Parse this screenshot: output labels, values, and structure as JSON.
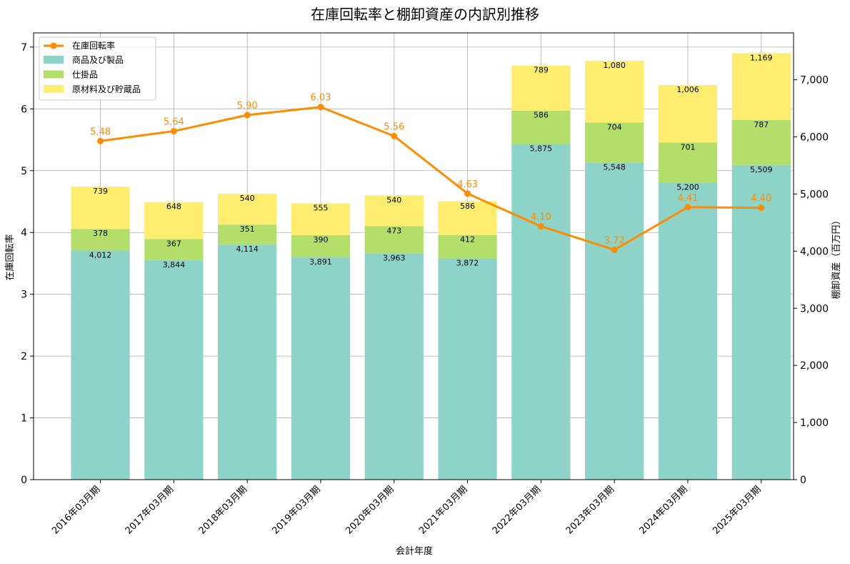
{
  "chart_data": {
    "type": "bar",
    "title": "在庫回転率と棚卸資産の内訳別推移",
    "xlabel": "会計年度",
    "ylabel_left": "在庫回転率",
    "ylabel_right": "棚卸資産（百万円）",
    "categories": [
      "2016年03月期",
      "2017年03月期",
      "2018年03月期",
      "2019年03月期",
      "2020年03月期",
      "2021年03月期",
      "2022年03月期",
      "2023年03月期",
      "2024年03月期",
      "2025年03月期"
    ],
    "stack_series": [
      {
        "name": "商品及び製品",
        "color": "#8dd3c7",
        "values": [
          4012,
          3844,
          4114,
          3891,
          3963,
          3872,
          5875,
          5548,
          5200,
          5509
        ],
        "labels": [
          "4,012",
          "3,844",
          "4,114",
          "3,891",
          "3,963",
          "3,872",
          "5,875",
          "5,548",
          "5,200",
          "5,509"
        ]
      },
      {
        "name": "仕掛品",
        "color": "#b3de69",
        "values": [
          378,
          367,
          351,
          390,
          473,
          412,
          586,
          704,
          701,
          787
        ],
        "labels": [
          "378",
          "367",
          "351",
          "390",
          "473",
          "412",
          "586",
          "704",
          "701",
          "787"
        ]
      },
      {
        "name": "原材料及び貯蔵品",
        "color": "#ffed6f",
        "values": [
          739,
          648,
          540,
          555,
          540,
          586,
          789,
          1080,
          1006,
          1169
        ],
        "labels": [
          "739",
          "648",
          "540",
          "555",
          "540",
          "586",
          "789",
          "1,080",
          "1,006",
          "1,169"
        ]
      }
    ],
    "line_series": {
      "name": "在庫回転率",
      "color": "#ff8c00",
      "values": [
        5.48,
        5.64,
        5.9,
        6.03,
        5.56,
        4.63,
        4.1,
        3.72,
        4.41,
        4.4
      ],
      "labels": [
        "5.48",
        "5.64",
        "5.90",
        "6.03",
        "5.56",
        "4.63",
        "4.10",
        "3.72",
        "4.41",
        "4.40"
      ]
    },
    "ylim_left": [
      0,
      7.23
    ],
    "ylim_right": [
      0,
      7821
    ],
    "yticks_left": [
      "0",
      "1",
      "2",
      "3",
      "4",
      "5",
      "6",
      "7"
    ],
    "yticks_right": [
      "0",
      "1,000",
      "2,000",
      "3,000",
      "4,000",
      "5,000",
      "6,000",
      "7,000"
    ],
    "grid": true,
    "legend_position": "top-left"
  }
}
